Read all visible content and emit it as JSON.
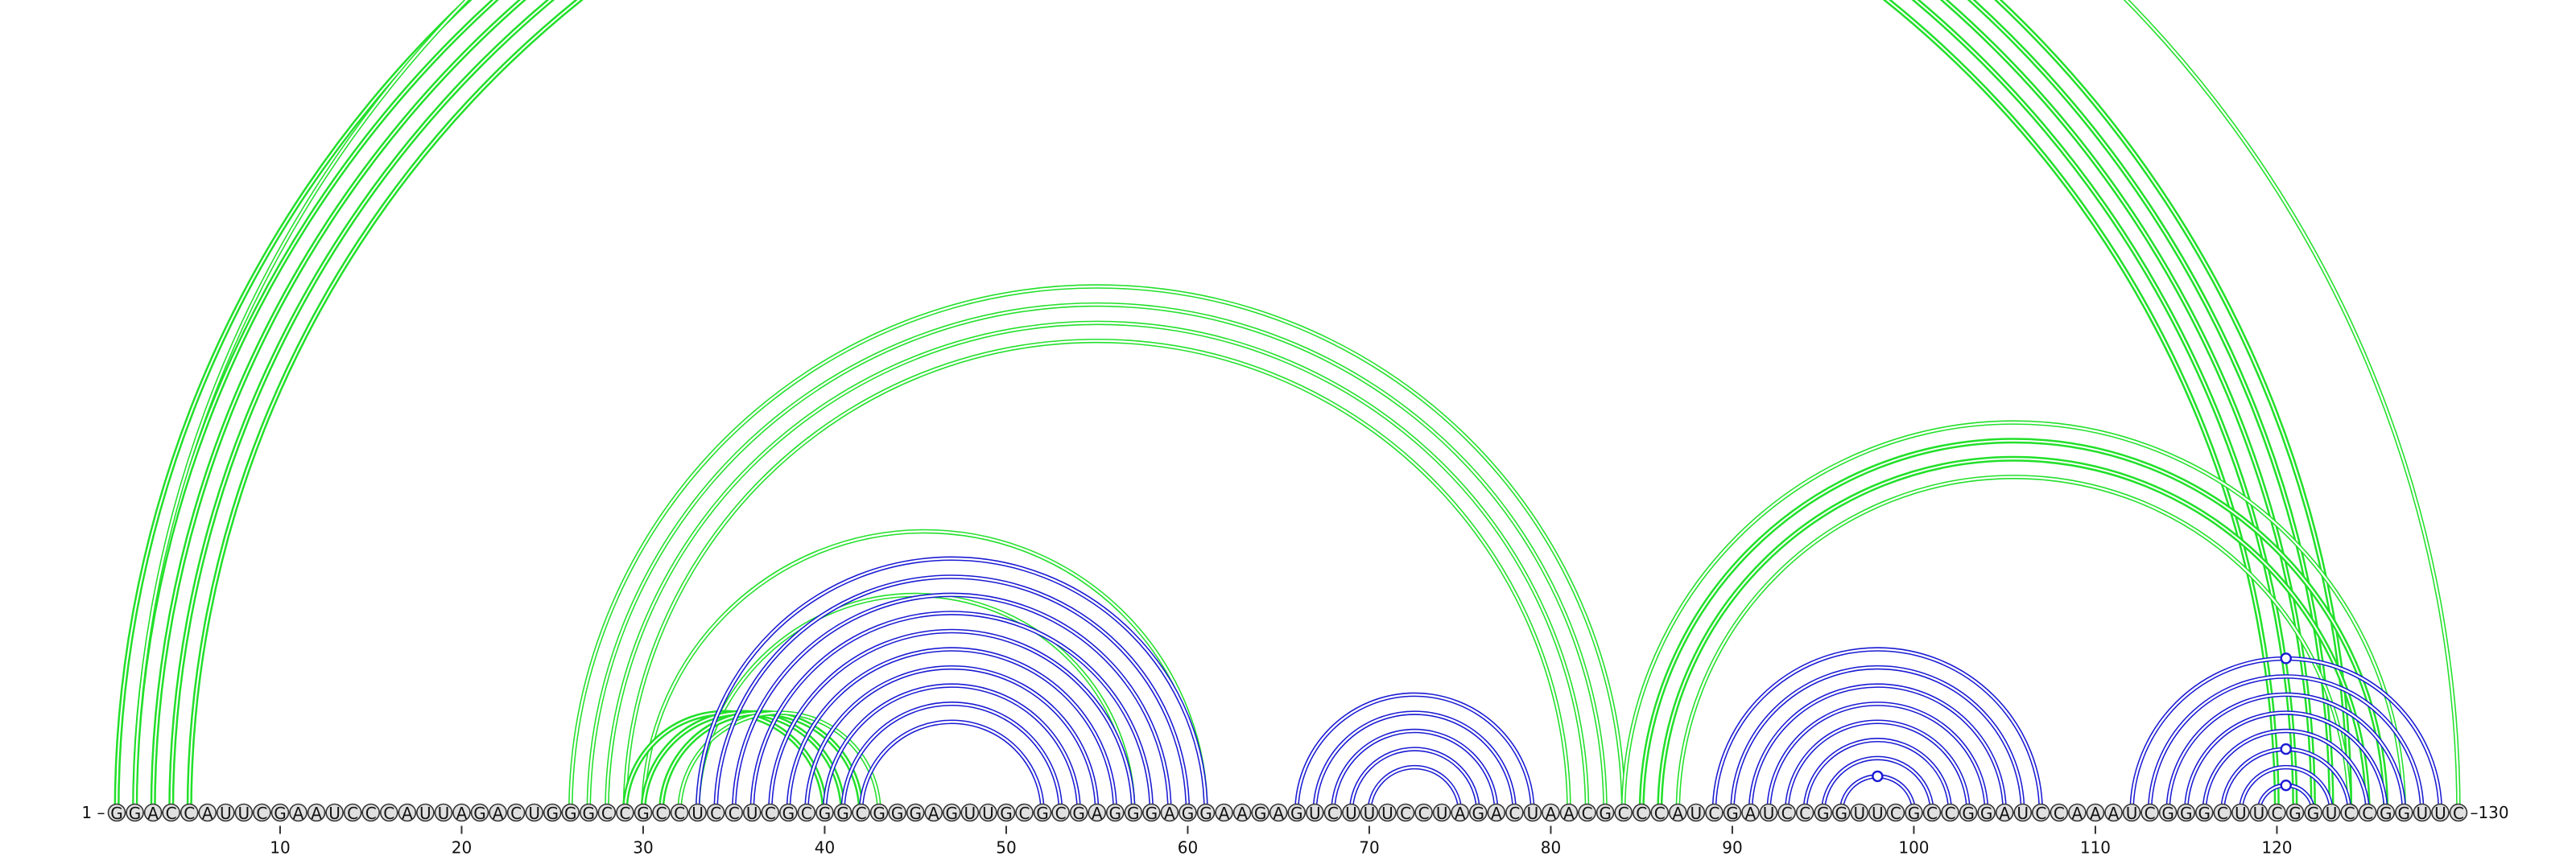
{
  "sequence": "GGACCAUUCGAAUCCCAUUAGACUGGGCCGCCUCCUCGCGGCGGGAGUUGCGCGAGGGAGGAAGAGUCUUUCCUAGACUAACGCCCAUCGAUCCGGUUCGCCGGAUCCAAAUCGGGCUUCGGUCCGGUUC",
  "start_label": "1 –",
  "end_label": "–130",
  "ticks": [
    "10",
    "20",
    "30",
    "40",
    "50",
    "60",
    "70",
    "80",
    "90",
    "100",
    "110",
    "120"
  ],
  "colors": {
    "green": "#22e02a",
    "blue": "#1a1ad4"
  },
  "arcs": [
    {
      "i": 1,
      "j": 124,
      "color": "green",
      "w": 5,
      "bold": true
    },
    {
      "i": 2,
      "j": 123,
      "color": "green",
      "w": 5,
      "bold": true
    },
    {
      "i": 3,
      "j": 122,
      "color": "green",
      "w": 5,
      "bold": true
    },
    {
      "i": 4,
      "j": 121,
      "color": "green",
      "w": 5,
      "bold": true
    },
    {
      "i": 5,
      "j": 120,
      "color": "green",
      "w": 5,
      "bold": true
    },
    {
      "i": 2,
      "j": 130,
      "color": "green",
      "w": 7,
      "bold": false,
      "marker": true
    },
    {
      "i": 26,
      "j": 84,
      "color": "green",
      "w": 5,
      "bold": false
    },
    {
      "i": 27,
      "j": 83,
      "color": "green",
      "w": 5,
      "bold": false
    },
    {
      "i": 28,
      "j": 82,
      "color": "green",
      "w": 5,
      "bold": false
    },
    {
      "i": 29,
      "j": 81,
      "color": "green",
      "w": 5,
      "bold": false
    },
    {
      "i": 84,
      "j": 127,
      "color": "green",
      "w": 5,
      "bold": false
    },
    {
      "i": 85,
      "j": 126,
      "color": "green",
      "w": 5,
      "bold": true
    },
    {
      "i": 86,
      "j": 125,
      "color": "green",
      "w": 5,
      "bold": true
    },
    {
      "i": 87,
      "j": 124,
      "color": "green",
      "w": 5,
      "bold": false
    },
    {
      "i": 33,
      "j": 57,
      "color": "green",
      "w": 5,
      "bold": false
    },
    {
      "i": 30,
      "j": 61,
      "color": "green",
      "w": 5,
      "bold": false
    },
    {
      "i": 29,
      "j": 40,
      "color": "green",
      "w": 5,
      "bold": true
    },
    {
      "i": 30,
      "j": 41,
      "color": "green",
      "w": 5,
      "bold": true
    },
    {
      "i": 31,
      "j": 42,
      "color": "green",
      "w": 5,
      "bold": true
    },
    {
      "i": 32,
      "j": 43,
      "color": "green",
      "w": 5,
      "bold": false
    },
    {
      "i": 33,
      "j": 61,
      "color": "blue",
      "w": 5
    },
    {
      "i": 34,
      "j": 60,
      "color": "blue",
      "w": 5
    },
    {
      "i": 35,
      "j": 59,
      "color": "blue",
      "w": 5
    },
    {
      "i": 36,
      "j": 58,
      "color": "blue",
      "w": 5
    },
    {
      "i": 37,
      "j": 57,
      "color": "blue",
      "w": 5
    },
    {
      "i": 38,
      "j": 56,
      "color": "blue",
      "w": 5
    },
    {
      "i": 39,
      "j": 55,
      "color": "blue",
      "w": 5
    },
    {
      "i": 40,
      "j": 54,
      "color": "blue",
      "w": 5
    },
    {
      "i": 41,
      "j": 53,
      "color": "blue",
      "w": 5
    },
    {
      "i": 42,
      "j": 52,
      "color": "blue",
      "w": 5
    },
    {
      "i": 66,
      "j": 79,
      "color": "blue",
      "w": 5
    },
    {
      "i": 67,
      "j": 78,
      "color": "blue",
      "w": 5
    },
    {
      "i": 68,
      "j": 77,
      "color": "blue",
      "w": 5
    },
    {
      "i": 69,
      "j": 76,
      "color": "blue",
      "w": 5
    },
    {
      "i": 70,
      "j": 75,
      "color": "blue",
      "w": 5
    },
    {
      "i": 89,
      "j": 107,
      "color": "blue",
      "w": 5
    },
    {
      "i": 90,
      "j": 106,
      "color": "blue",
      "w": 5
    },
    {
      "i": 91,
      "j": 105,
      "color": "blue",
      "w": 5
    },
    {
      "i": 92,
      "j": 104,
      "color": "blue",
      "w": 5
    },
    {
      "i": 93,
      "j": 103,
      "color": "blue",
      "w": 5
    },
    {
      "i": 94,
      "j": 102,
      "color": "blue",
      "w": 5
    },
    {
      "i": 95,
      "j": 101,
      "color": "blue",
      "w": 5
    },
    {
      "i": 96,
      "j": 100,
      "color": "blue",
      "w": 5,
      "marker": true
    },
    {
      "i": 112,
      "j": 129,
      "color": "blue",
      "w": 5,
      "marker": true
    },
    {
      "i": 113,
      "j": 128,
      "color": "blue",
      "w": 5
    },
    {
      "i": 114,
      "j": 127,
      "color": "blue",
      "w": 5
    },
    {
      "i": 115,
      "j": 126,
      "color": "blue",
      "w": 5
    },
    {
      "i": 116,
      "j": 125,
      "color": "blue",
      "w": 5
    },
    {
      "i": 117,
      "j": 124,
      "color": "blue",
      "w": 5,
      "marker": true
    },
    {
      "i": 118,
      "j": 123,
      "color": "blue",
      "w": 5
    },
    {
      "i": 119,
      "j": 122,
      "color": "blue",
      "w": 5,
      "marker": true
    }
  ]
}
